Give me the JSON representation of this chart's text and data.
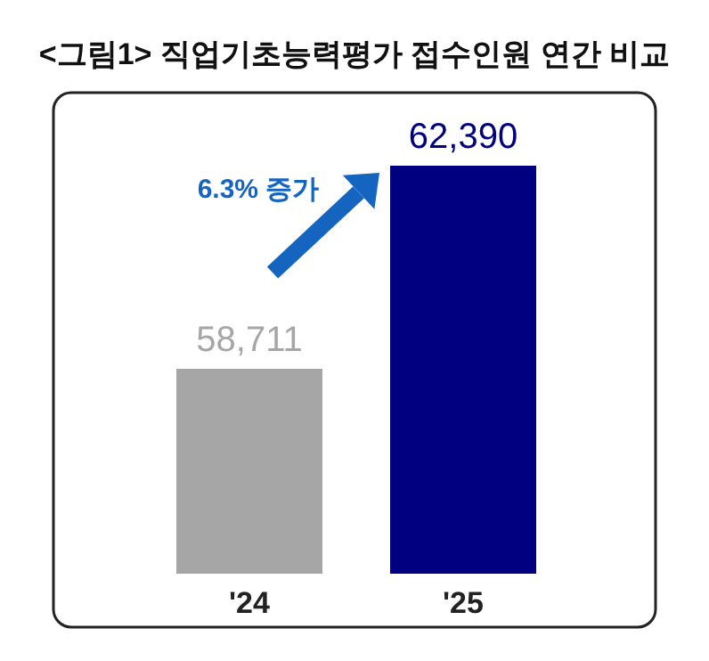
{
  "chart_data": {
    "type": "bar",
    "title": "<그림1> 직업기초능력평가 접수인원 연간 비교",
    "categories": [
      "'24",
      "'25"
    ],
    "values": [
      58711,
      62390
    ],
    "colors": [
      "#a6a6a6",
      "#000080"
    ],
    "value_labels": [
      "58,711",
      "62,390"
    ],
    "ylim": [
      55000,
      62390
    ],
    "tick_labels": "x",
    "annotations": [
      "6.3% 증가"
    ]
  }
}
